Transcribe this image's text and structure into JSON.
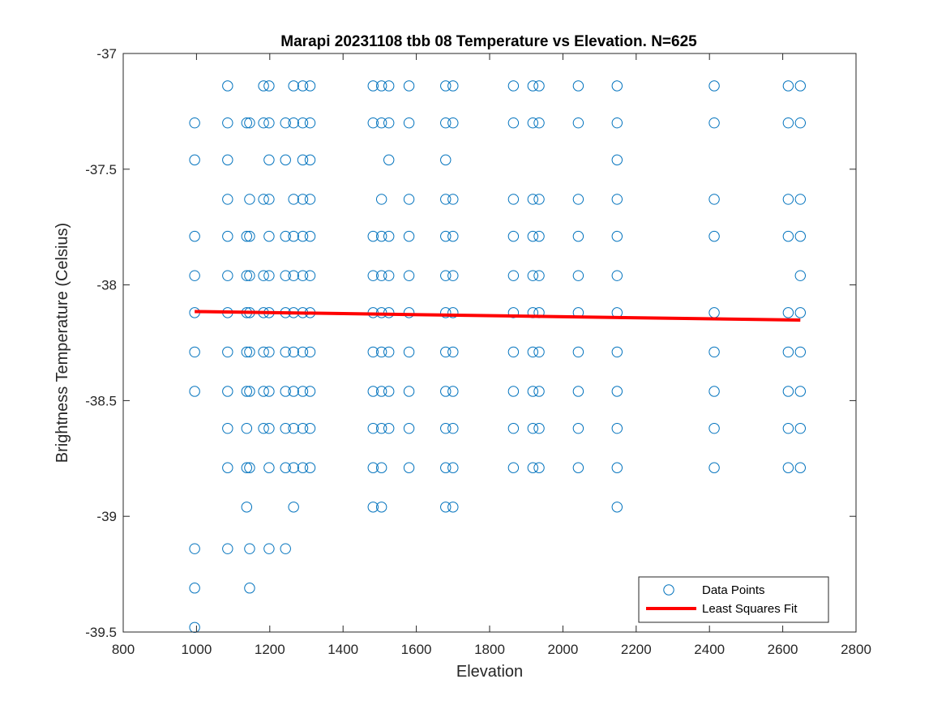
{
  "chart_data": {
    "type": "scatter",
    "title": "Marapi 20231108 tbb 08 Temperature vs Elevation. N=625",
    "xlabel": "Elevation",
    "ylabel": "Brightness Temperature (Celsius)",
    "xlim": [
      800,
      2800
    ],
    "ylim": [
      -39.5,
      -37
    ],
    "xticks": [
      800,
      1000,
      1200,
      1400,
      1600,
      1800,
      2000,
      2200,
      2400,
      2600,
      2800
    ],
    "yticks": [
      -37,
      -37.5,
      -38,
      -38.5,
      -39,
      -39.5
    ],
    "xtick_labels": [
      "800",
      "1000",
      "1200",
      "1400",
      "1600",
      "1800",
      "2000",
      "2200",
      "2400",
      "2600",
      "2800"
    ],
    "ytick_labels": [
      "-37",
      "-37.5",
      "-38",
      "-38.5",
      "-39",
      "-39.5"
    ],
    "grid": false,
    "legend": {
      "position": "bottom-right",
      "entries": [
        "Data Points",
        "Least Squares Fit"
      ]
    },
    "colors": {
      "points": "#0072BD",
      "fit": "#FF0000"
    },
    "series": [
      {
        "name": "Data Points",
        "type": "scatter",
        "columns": [
          {
            "x": 995,
            "y": [
              -37.3,
              -37.46,
              -37.79,
              -37.96,
              -38.12,
              -38.29,
              -38.46,
              -39.14,
              -39.31,
              -39.48
            ]
          },
          {
            "x": 1085,
            "y": [
              -37.14,
              -37.3,
              -37.46,
              -37.63,
              -37.79,
              -37.96,
              -38.12,
              -38.29,
              -38.46,
              -38.62,
              -38.79,
              -39.14
            ]
          },
          {
            "x": 1137,
            "y": [
              -37.3,
              -37.79,
              -37.96,
              -38.12,
              -38.29,
              -38.46,
              -38.62,
              -38.79,
              -38.96
            ]
          },
          {
            "x": 1145,
            "y": [
              -37.3,
              -37.63,
              -37.79,
              -37.96,
              -38.12,
              -38.29,
              -38.46,
              -38.79,
              -39.14,
              -39.31
            ]
          },
          {
            "x": 1183,
            "y": [
              -37.14,
              -37.3,
              -37.63,
              -37.96,
              -38.12,
              -38.29,
              -38.46,
              -38.62
            ]
          },
          {
            "x": 1198,
            "y": [
              -37.14,
              -37.3,
              -37.46,
              -37.63,
              -37.79,
              -37.96,
              -38.12,
              -38.29,
              -38.46,
              -38.62,
              -38.79,
              -39.14
            ]
          },
          {
            "x": 1243,
            "y": [
              -37.3,
              -37.46,
              -37.79,
              -37.96,
              -38.12,
              -38.29,
              -38.46,
              -38.62,
              -38.79,
              -39.14
            ]
          },
          {
            "x": 1265,
            "y": [
              -37.14,
              -37.3,
              -37.63,
              -37.79,
              -37.96,
              -38.12,
              -38.29,
              -38.46,
              -38.62,
              -38.79,
              -38.96
            ]
          },
          {
            "x": 1290,
            "y": [
              -37.14,
              -37.3,
              -37.46,
              -37.63,
              -37.79,
              -37.96,
              -38.12,
              -38.29,
              -38.46,
              -38.62,
              -38.79
            ]
          },
          {
            "x": 1310,
            "y": [
              -37.14,
              -37.3,
              -37.46,
              -37.63,
              -37.79,
              -37.96,
              -38.12,
              -38.29,
              -38.46,
              -38.62,
              -38.79
            ]
          },
          {
            "x": 1482,
            "y": [
              -37.14,
              -37.3,
              -37.79,
              -37.96,
              -38.12,
              -38.29,
              -38.46,
              -38.62,
              -38.79,
              -38.96
            ]
          },
          {
            "x": 1505,
            "y": [
              -37.14,
              -37.3,
              -37.63,
              -37.79,
              -37.96,
              -38.12,
              -38.29,
              -38.46,
              -38.62,
              -38.79,
              -38.96
            ]
          },
          {
            "x": 1525,
            "y": [
              -37.14,
              -37.3,
              -37.46,
              -37.79,
              -37.96,
              -38.12,
              -38.29,
              -38.46,
              -38.62
            ]
          },
          {
            "x": 1580,
            "y": [
              -37.14,
              -37.3,
              -37.63,
              -37.79,
              -37.96,
              -38.12,
              -38.29,
              -38.46,
              -38.62,
              -38.79
            ]
          },
          {
            "x": 1680,
            "y": [
              -37.14,
              -37.3,
              -37.46,
              -37.63,
              -37.79,
              -37.96,
              -38.12,
              -38.29,
              -38.46,
              -38.62,
              -38.79,
              -38.96
            ]
          },
          {
            "x": 1700,
            "y": [
              -37.14,
              -37.3,
              -37.63,
              -37.79,
              -37.96,
              -38.12,
              -38.29,
              -38.46,
              -38.62,
              -38.79,
              -38.96
            ]
          },
          {
            "x": 1865,
            "y": [
              -37.14,
              -37.3,
              -37.63,
              -37.79,
              -37.96,
              -38.12,
              -38.29,
              -38.46,
              -38.62,
              -38.79
            ]
          },
          {
            "x": 1918,
            "y": [
              -37.14,
              -37.3,
              -37.63,
              -37.79,
              -37.96,
              -38.12,
              -38.29,
              -38.46,
              -38.62,
              -38.79
            ]
          },
          {
            "x": 1935,
            "y": [
              -37.14,
              -37.3,
              -37.63,
              -37.79,
              -37.96,
              -38.12,
              -38.29,
              -38.46,
              -38.62,
              -38.79
            ]
          },
          {
            "x": 2042,
            "y": [
              -37.14,
              -37.3,
              -37.63,
              -37.79,
              -37.96,
              -38.12,
              -38.29,
              -38.46,
              -38.62,
              -38.79
            ]
          },
          {
            "x": 2148,
            "y": [
              -37.14,
              -37.3,
              -37.46,
              -37.63,
              -37.79,
              -37.96,
              -38.12,
              -38.29,
              -38.46,
              -38.62,
              -38.79,
              -38.96
            ]
          },
          {
            "x": 2413,
            "y": [
              -37.14,
              -37.3,
              -37.63,
              -37.79,
              -38.12,
              -38.29,
              -38.46,
              -38.62,
              -38.79
            ]
          },
          {
            "x": 2615,
            "y": [
              -37.14,
              -37.3,
              -37.63,
              -37.79,
              -38.12,
              -38.29,
              -38.46,
              -38.62,
              -38.79
            ]
          },
          {
            "x": 2648,
            "y": [
              -37.14,
              -37.3,
              -37.63,
              -37.79,
              -37.96,
              -38.12,
              -38.29,
              -38.46,
              -38.62,
              -38.79
            ]
          }
        ]
      },
      {
        "name": "Least Squares Fit",
        "type": "line",
        "x": [
          995,
          2648
        ],
        "y": [
          -38.115,
          -38.152
        ]
      }
    ]
  }
}
